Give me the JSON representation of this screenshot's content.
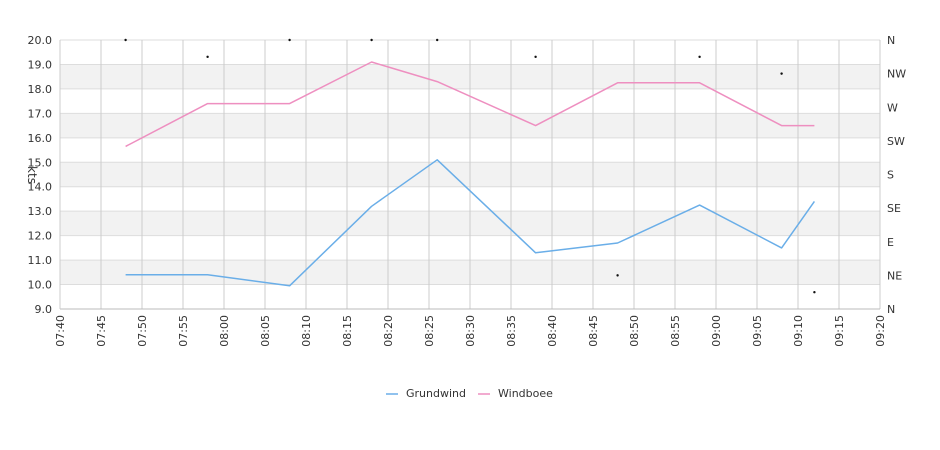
{
  "chart_data": {
    "type": "line",
    "ylabel": "kts",
    "ylim": [
      9.0,
      20.0
    ],
    "y_ticks": [
      "9.0",
      "10.0",
      "11.0",
      "12.0",
      "13.0",
      "14.0",
      "15.0",
      "16.0",
      "17.0",
      "18.0",
      "19.0",
      "20.0"
    ],
    "x_ticks": [
      "07:40",
      "07:45",
      "07:50",
      "07:55",
      "08:00",
      "08:05",
      "08:10",
      "08:15",
      "08:20",
      "08:25",
      "08:30",
      "08:35",
      "08:40",
      "08:45",
      "08:50",
      "08:55",
      "09:00",
      "09:05",
      "09:10",
      "09:15",
      "09:20"
    ],
    "right_ticks": [
      "N",
      "NE",
      "E",
      "SE",
      "S",
      "SW",
      "W",
      "NW",
      "N"
    ],
    "series": [
      {
        "name": "Grundwind",
        "color": "#6aaee8",
        "points": [
          {
            "x": "07:48",
            "y": 10.4
          },
          {
            "x": "07:58",
            "y": 10.4
          },
          {
            "x": "08:08",
            "y": 9.95
          },
          {
            "x": "08:18",
            "y": 13.2
          },
          {
            "x": "08:26",
            "y": 15.1
          },
          {
            "x": "08:38",
            "y": 11.3
          },
          {
            "x": "08:48",
            "y": 11.7
          },
          {
            "x": "08:58",
            "y": 13.25
          },
          {
            "x": "09:08",
            "y": 11.5
          },
          {
            "x": "09:12",
            "y": 13.4
          }
        ]
      },
      {
        "name": "Windboee",
        "color": "#ee8fc0",
        "points": [
          {
            "x": "07:48",
            "y": 15.65
          },
          {
            "x": "07:58",
            "y": 17.4
          },
          {
            "x": "08:08",
            "y": 17.4
          },
          {
            "x": "08:18",
            "y": 19.1
          },
          {
            "x": "08:26",
            "y": 18.3
          },
          {
            "x": "08:38",
            "y": 16.5
          },
          {
            "x": "08:48",
            "y": 18.25
          },
          {
            "x": "08:58",
            "y": 18.25
          },
          {
            "x": "09:08",
            "y": 16.5
          },
          {
            "x": "09:12",
            "y": 16.5
          }
        ]
      }
    ],
    "direction_marks": [
      {
        "x": "07:48",
        "dir": "N"
      },
      {
        "x": "07:58",
        "dir": "NNW"
      },
      {
        "x": "08:08",
        "dir": "N"
      },
      {
        "x": "08:18",
        "dir": "N"
      },
      {
        "x": "08:26",
        "dir": "N"
      },
      {
        "x": "08:38",
        "dir": "NNW"
      },
      {
        "x": "08:48",
        "dir": "NE"
      },
      {
        "x": "08:58",
        "dir": "NNW"
      },
      {
        "x": "09:08",
        "dir": "NW"
      },
      {
        "x": "09:12",
        "dir": "NNE"
      }
    ],
    "grid": true,
    "legend": "bottom"
  }
}
